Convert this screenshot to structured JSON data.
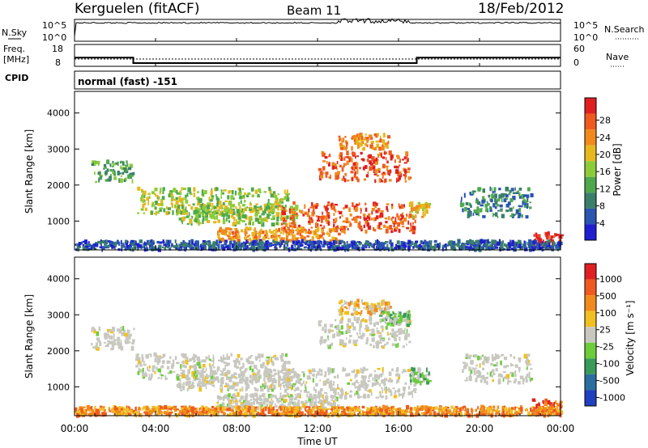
{
  "header": {
    "station": "Kerguelen (fitACF)",
    "beam": "Beam 11",
    "date": "18/Feb/2012"
  },
  "nsky_panel": {
    "left_label": "N.Sky",
    "right_label": "N.Search",
    "left_ticks": [
      "10^5",
      "10^0"
    ],
    "right_ticks": [
      "10^5",
      "10^0"
    ]
  },
  "freq_panel": {
    "left_label_line1": "Freq.",
    "left_label_line2": "[MHz]",
    "right_label": "Nave",
    "left_ticks": [
      "18",
      "8"
    ],
    "right_ticks": [
      "60",
      "0"
    ]
  },
  "cpid": {
    "label": "CPID",
    "value": "normal (fast) -151"
  },
  "x_axis": {
    "label": "Time UT",
    "ticks": [
      "00:00",
      "04:00",
      "08:00",
      "12:00",
      "16:00",
      "20:00",
      "00:00"
    ]
  },
  "chart_data": [
    {
      "type": "heatmap",
      "panel": "power",
      "ylabel": "Slant Range [km]",
      "y_ticks": [
        "1000",
        "2000",
        "3000",
        "4000"
      ],
      "ylim": [
        200,
        4600
      ],
      "colorbar_label": "Power [dB]",
      "colorbar_ticks": [
        "4",
        "8",
        "12",
        "16",
        "20",
        "24",
        "28"
      ],
      "colorbar_colors": [
        "#1f1fd0",
        "#2a55b0",
        "#3a7f6a",
        "#4ea84c",
        "#8ccc38",
        "#e6b81e",
        "#f08a1c",
        "#f05a1e",
        "#e02020"
      ],
      "echo_regions": [
        {
          "t_start": 0.8,
          "t_end": 2.9,
          "r_center": 2350,
          "r_width": 300,
          "level": 3
        },
        {
          "t_start": 3.0,
          "t_end": 10.5,
          "r_center": 1550,
          "r_width": 350,
          "level": 4
        },
        {
          "t_start": 5.0,
          "t_end": 11.0,
          "r_center": 1150,
          "r_width": 250,
          "level": 4
        },
        {
          "t_start": 10.0,
          "t_end": 16.8,
          "r_center": 1100,
          "r_width": 400,
          "level": 7
        },
        {
          "t_start": 7.0,
          "t_end": 13.0,
          "r_center": 600,
          "r_width": 200,
          "level": 6
        },
        {
          "t_start": 12.0,
          "t_end": 16.5,
          "r_center": 2500,
          "r_width": 400,
          "level": 7
        },
        {
          "t_start": 13.0,
          "t_end": 15.5,
          "r_center": 3200,
          "r_width": 200,
          "level": 6
        },
        {
          "t_start": 16.5,
          "t_end": 17.5,
          "r_center": 1300,
          "r_width": 200,
          "level": 5
        },
        {
          "t_start": 19.0,
          "t_end": 22.5,
          "r_center": 1500,
          "r_width": 400,
          "level": 2
        },
        {
          "t_start": 22.5,
          "t_end": 24.0,
          "r_center": 450,
          "r_width": 200,
          "level": 8
        },
        {
          "t_start": 0.0,
          "t_end": 24.0,
          "r_center": 320,
          "r_width": 120,
          "level": 1
        }
      ]
    },
    {
      "type": "heatmap",
      "panel": "velocity",
      "ylabel": "Slant Range [km]",
      "y_ticks": [
        "1000",
        "2000",
        "3000",
        "4000"
      ],
      "ylim": [
        200,
        4600
      ],
      "colorbar_label": "Velocity [m s⁻¹]",
      "colorbar_ticks": [
        "1000",
        "500",
        "100",
        "25",
        "-25",
        "-100",
        "-500",
        "-1000"
      ],
      "colorbar_colors": [
        "#2040c0",
        "#2a6ea0",
        "#3a9a5a",
        "#6ccc3a",
        "#c8c8c0",
        "#f0c020",
        "#f08a1c",
        "#f05a1e",
        "#e02020"
      ],
      "echo_regions": [
        {
          "t_start": 0.8,
          "t_end": 2.9,
          "r_center": 2350,
          "r_width": 300,
          "level": 4
        },
        {
          "t_start": 3.0,
          "t_end": 10.5,
          "r_center": 1550,
          "r_width": 350,
          "level": 4
        },
        {
          "t_start": 5.0,
          "t_end": 11.0,
          "r_center": 1150,
          "r_width": 250,
          "level": 4
        },
        {
          "t_start": 10.0,
          "t_end": 16.8,
          "r_center": 1100,
          "r_width": 400,
          "level": 4
        },
        {
          "t_start": 7.0,
          "t_end": 13.0,
          "r_center": 600,
          "r_width": 200,
          "level": 4
        },
        {
          "t_start": 12.0,
          "t_end": 16.5,
          "r_center": 2500,
          "r_width": 400,
          "level": 4
        },
        {
          "t_start": 13.0,
          "t_end": 15.5,
          "r_center": 3200,
          "r_width": 200,
          "level": 5
        },
        {
          "t_start": 15.0,
          "t_end": 16.5,
          "r_center": 2900,
          "r_width": 200,
          "level": 3
        },
        {
          "t_start": 16.5,
          "t_end": 17.5,
          "r_center": 1300,
          "r_width": 200,
          "level": 3
        },
        {
          "t_start": 19.0,
          "t_end": 22.5,
          "r_center": 1500,
          "r_width": 400,
          "level": 4
        },
        {
          "t_start": 22.5,
          "t_end": 24.0,
          "r_center": 450,
          "r_width": 200,
          "level": 7
        },
        {
          "t_start": 0.0,
          "t_end": 24.0,
          "r_center": 320,
          "r_width": 120,
          "level": 6
        }
      ]
    }
  ],
  "frequency_trace": {
    "segments": [
      {
        "t_start": 0.0,
        "t_end": 2.9,
        "mhz": 12.0
      },
      {
        "t_start": 2.9,
        "t_end": 16.9,
        "mhz": 9.5
      },
      {
        "t_start": 16.9,
        "t_end": 24.0,
        "mhz": 12.0
      }
    ],
    "ylim": [
      8,
      18
    ]
  },
  "nave_trace": {
    "level": 20,
    "ylim": [
      0,
      60
    ]
  }
}
